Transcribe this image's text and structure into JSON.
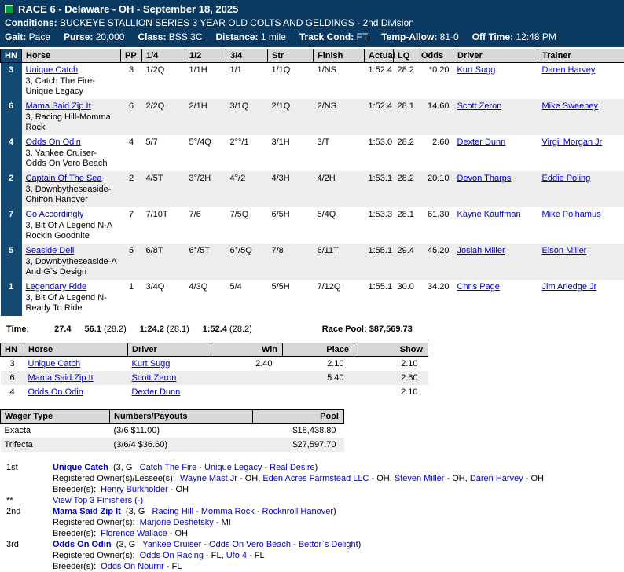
{
  "header": {
    "title": "RACE 6 - Delaware - OH - September 18, 2025",
    "conditions_label": "Conditions:",
    "conditions": "BUCKEYE STALLION SERIES 3 YEAR OLD COLTS AND GELDINGS - 2nd Division",
    "stats": [
      {
        "label": "Gait:",
        "value": "Pace"
      },
      {
        "label": "Purse:",
        "value": "20,000"
      },
      {
        "label": "Class:",
        "value": "BSS 3C"
      },
      {
        "label": "Distance:",
        "value": "1 mile"
      },
      {
        "label": "Track Cond:",
        "value": "FT"
      },
      {
        "label": "Temp-Allow:",
        "value": "81-0"
      },
      {
        "label": "Off Time:",
        "value": "12:48 PM"
      }
    ],
    "colors": {
      "navy": "#0a3a61",
      "hn_column": "#134a74",
      "green_indicator": "#00a33d",
      "link_blue": "#0000cc",
      "stripe_gray": "#ededed",
      "header_gray": "#d8d8d8"
    }
  },
  "results": {
    "headers": [
      "HN",
      "Horse",
      "PP",
      "1/4",
      "1/2",
      "3/4",
      "Str",
      "Finish",
      "Actual",
      "LQ",
      "Odds",
      "Driver",
      "Trainer"
    ],
    "rows": [
      {
        "hn": "3",
        "horse": "Unique Catch",
        "sub": "3, Catch The Fire-Unique Legacy",
        "pp": "3",
        "q1": "1/2Q",
        "q2": "1/1H",
        "q3": "1/1",
        "str": "1/1Q",
        "finish": "1/NS",
        "actual": "1:52.4",
        "lq": "28.2",
        "odds": "*0.20",
        "driver": "Kurt Sugg",
        "trainer": "Daren Harvey"
      },
      {
        "hn": "6",
        "horse": "Mama Said Zip It",
        "sub": "3, Racing Hill-Momma Rock",
        "pp": "6",
        "q1": "2/2Q",
        "q2": "2/1H",
        "q3": "3/1Q",
        "str": "2/1Q",
        "finish": "2/NS",
        "actual": "1:52.4",
        "lq": "28.1",
        "odds": "14.60",
        "driver": "Scott Zeron",
        "trainer": "Mike Sweeney"
      },
      {
        "hn": "4",
        "horse": "Odds On Odin",
        "sub": "3, Yankee Cruiser-Odds On Vero Beach",
        "pp": "4",
        "q1": "5/7",
        "q2": "5°/4Q",
        "q3": "2°°/1",
        "str": "3/1H",
        "finish": "3/T",
        "actual": "1:53.0",
        "lq": "28.2",
        "odds": "2.60",
        "driver": "Dexter Dunn",
        "trainer": "Virgil Morgan Jr"
      },
      {
        "hn": "2",
        "horse": "Captain Of The Sea",
        "sub": "3, Downbytheseaside-Chiffon Hanover",
        "pp": "2",
        "q1": "4/5T",
        "q2": "3°/2H",
        "q3": "4°/2",
        "str": "4/3H",
        "finish": "4/2H",
        "actual": "1:53.1",
        "lq": "28.2",
        "odds": "20.10",
        "driver": "Devon Tharps",
        "trainer": "Eddie Poling"
      },
      {
        "hn": "7",
        "horse": "Go Accordingly",
        "sub": "3, Bit Of A Legend N-A Rockin Goodnite",
        "pp": "7",
        "q1": "7/10T",
        "q2": "7/6",
        "q3": "7/5Q",
        "str": "6/5H",
        "finish": "5/4Q",
        "actual": "1:53.3",
        "lq": "28.1",
        "odds": "61.30",
        "driver": "Kayne Kauffman",
        "trainer": "Mike Polhamus"
      },
      {
        "hn": "5",
        "horse": "Seaside Deli",
        "sub": "3, Downbytheseaside-A And G`s Design",
        "pp": "5",
        "q1": "6/8T",
        "q2": "6°/5T",
        "q3": "6°/5Q",
        "str": "7/8",
        "finish": "6/11T",
        "actual": "1:55.1",
        "lq": "29.4",
        "odds": "45.20",
        "driver": "Josiah Miller",
        "trainer": "Elson Miller"
      },
      {
        "hn": "1",
        "horse": "Legendary Ride",
        "sub": "3, Bit Of A Legend N-Ready To Ride",
        "pp": "1",
        "q1": "3/4Q",
        "q2": "4/3Q",
        "q3": "5/4",
        "str": "5/5H",
        "finish": "7/12Q",
        "actual": "1:55.1",
        "lq": "30.0",
        "odds": "34.20",
        "driver": "Chris Page",
        "trainer": "Jim Arledge Jr"
      }
    ]
  },
  "time_row": {
    "label": "Time:",
    "times": [
      {
        "t": "27.4",
        "q": ""
      },
      {
        "t": "56.1",
        "q": "(28.2)"
      },
      {
        "t": "1:24.2",
        "q": "(28.1)"
      },
      {
        "t": "1:52.4",
        "q": "(28.2)"
      }
    ],
    "pool_label": "Race Pool:",
    "pool_value": "$87,569.73"
  },
  "payouts": {
    "headers": [
      "HN",
      "Horse",
      "Driver",
      "Win",
      "Place",
      "Show"
    ],
    "rows": [
      {
        "hn": "3",
        "horse": "Unique Catch",
        "driver": "Kurt Sugg",
        "win": "2.40",
        "place": "2.10",
        "show": "2.10"
      },
      {
        "hn": "6",
        "horse": "Mama Said Zip It",
        "driver": "Scott Zeron",
        "win": "",
        "place": "5.40",
        "show": "2.60"
      },
      {
        "hn": "4",
        "horse": "Odds On Odin",
        "driver": "Dexter Dunn",
        "win": "",
        "place": "",
        "show": "2.10"
      }
    ]
  },
  "wagers": {
    "headers": [
      "Wager Type",
      "Numbers/Payouts",
      "Pool"
    ],
    "rows": [
      {
        "type": "Exacta",
        "numbers": "(3/6 $11.00)",
        "pool": "$18,438.80"
      },
      {
        "type": "Trifecta",
        "numbers": "(3/6/4 $36.60)",
        "pool": "$27,597.70"
      }
    ]
  },
  "finishers": [
    {
      "marker": "1st",
      "lines": [
        [
          {
            "t": "Unique Catch",
            "link": true,
            "b": true
          },
          {
            "t": "  (3, G   "
          },
          {
            "t": "Catch The Fire",
            "link": true
          },
          {
            "t": " - "
          },
          {
            "t": "Unique Legacy",
            "link": true
          },
          {
            "t": " - "
          },
          {
            "t": "Real Desire",
            "link": true
          },
          {
            "t": ")"
          }
        ],
        [
          {
            "t": "Registered Owner(s)/Lessee(s):  "
          },
          {
            "t": "Wayne Mast Jr",
            "link": true
          },
          {
            "t": " - OH, "
          },
          {
            "t": "Eden Acres Farmstead LLC",
            "link": true
          },
          {
            "t": " - OH, "
          },
          {
            "t": "Steven Miller",
            "link": true
          },
          {
            "t": " - OH, "
          },
          {
            "t": "Daren Harvey",
            "link": true
          },
          {
            "t": " - OH"
          }
        ],
        [
          {
            "t": "Breeder(s):  "
          },
          {
            "t": "Henry Burkholder",
            "link": true
          },
          {
            "t": " - OH"
          }
        ]
      ]
    },
    {
      "marker": "**",
      "lines": [
        [
          {
            "t": "View Top 3 Finishers (-)",
            "link": true
          }
        ]
      ]
    },
    {
      "marker": "2nd",
      "lines": [
        [
          {
            "t": "Mama Said Zip It",
            "link": true,
            "b": true
          },
          {
            "t": "  (3, G   "
          },
          {
            "t": "Racing Hill",
            "link": true
          },
          {
            "t": " - "
          },
          {
            "t": "Momma Rock",
            "link": true
          },
          {
            "t": " - "
          },
          {
            "t": "Rocknroll Hanover",
            "link": true
          },
          {
            "t": ")"
          }
        ],
        [
          {
            "t": "Registered Owner(s):  "
          },
          {
            "t": "Marjorie Deshetsky",
            "link": true
          },
          {
            "t": " - MI"
          }
        ],
        [
          {
            "t": "Breeder(s):  "
          },
          {
            "t": "Florence Wallace",
            "link": true
          },
          {
            "t": " - OH"
          }
        ]
      ]
    },
    {
      "marker": "3rd",
      "lines": [
        [
          {
            "t": "Odds On Odin",
            "link": true,
            "b": true
          },
          {
            "t": "  (3, G   "
          },
          {
            "t": "Yankee Cruiser",
            "link": true
          },
          {
            "t": " - "
          },
          {
            "t": "Odds On Vero Beach",
            "link": true
          },
          {
            "t": " - "
          },
          {
            "t": "Bettor`s Delight",
            "link": true
          },
          {
            "t": ")"
          }
        ],
        [
          {
            "t": "Registered Owner(s):  "
          },
          {
            "t": "Odds On Racing",
            "link": true
          },
          {
            "t": " - FL, "
          },
          {
            "t": "Ufo 4",
            "link": true
          },
          {
            "t": " - FL"
          }
        ],
        [
          {
            "t": "Breeder(s):  "
          },
          {
            "t": "Odds On Nourrir",
            "link": true,
            "nu": true
          },
          {
            "t": " - FL"
          }
        ]
      ]
    }
  ]
}
